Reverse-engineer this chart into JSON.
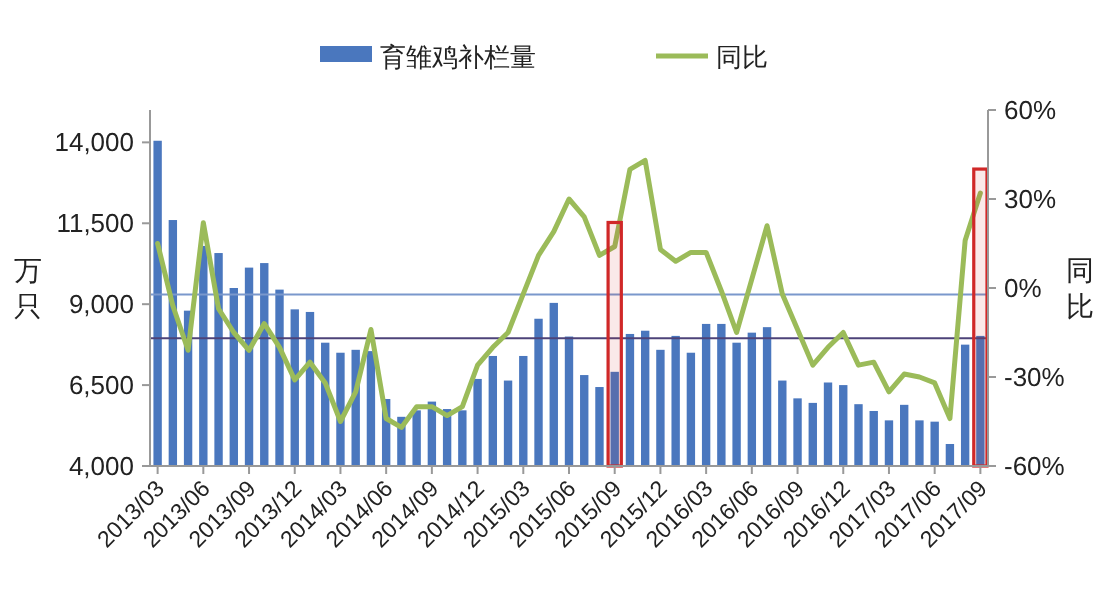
{
  "chart_data": {
    "type": "bar",
    "ylabel": "万只",
    "y2label": "同比",
    "categories": [
      "2013/03",
      null,
      null,
      "2013/06",
      null,
      null,
      "2013/09",
      null,
      null,
      "2013/12",
      null,
      null,
      "2014/03",
      null,
      null,
      "2014/06",
      null,
      null,
      "2014/09",
      null,
      null,
      "2014/12",
      null,
      null,
      "2015/03",
      null,
      null,
      "2015/06",
      null,
      null,
      "2015/09",
      null,
      null,
      "2015/12",
      null,
      null,
      "2016/03",
      null,
      null,
      "2016/06",
      null,
      null,
      "2016/09",
      null,
      null,
      "2016/12",
      null,
      null,
      "2017/03",
      null,
      null,
      "2017/06",
      null,
      null,
      "2017/09"
    ],
    "series": [
      {
        "name": "育雏鸡补栏量",
        "color": "#4a77be",
        "values": [
          14050,
          11600,
          8800,
          10800,
          10580,
          9500,
          10130,
          10270,
          9450,
          8840,
          8760,
          7810,
          7500,
          7590,
          7550,
          6070,
          5520,
          5720,
          5990,
          5760,
          5720,
          6690,
          7400,
          6640,
          7400,
          8550,
          9040,
          8000,
          6810,
          6440,
          6910,
          8080,
          8180,
          7590,
          8020,
          7500,
          8390,
          8390,
          7810,
          8120,
          8290,
          6640,
          6090,
          5950,
          6580,
          6500,
          5910,
          5700,
          5410,
          5890,
          5410,
          5370,
          4680,
          7750,
          8020
        ]
      },
      {
        "name": "同比",
        "type": "line",
        "axis": "y2",
        "color": "#9bbb59",
        "values": [
          15,
          -6,
          -21,
          22,
          -7,
          -15,
          -21,
          -12,
          -20,
          -31,
          -25,
          -32,
          -45,
          -35,
          -14,
          -44,
          -47,
          -40,
          -40,
          -43,
          -40,
          -26,
          -20,
          -15,
          -2,
          11,
          19,
          30,
          24,
          11,
          14,
          40,
          43,
          13,
          9,
          12,
          12,
          -1,
          -15,
          3,
          21,
          -2,
          -14,
          -26,
          -20,
          -15,
          -26,
          -25,
          -35,
          -29,
          -30,
          -32,
          -44,
          16,
          32
        ]
      }
    ],
    "ylim": [
      4000,
      15000
    ],
    "yticks": [
      {
        "value": 4000,
        "label": "4,000"
      },
      {
        "value": 6500,
        "label": "6,500"
      },
      {
        "value": 9000,
        "label": "9,000"
      },
      {
        "value": 11500,
        "label": "11,500"
      },
      {
        "value": 14000,
        "label": "14,000"
      }
    ],
    "y2lim": [
      -60,
      60
    ],
    "y2ticks": [
      {
        "value": -60,
        "label": "-60%"
      },
      {
        "value": -30,
        "label": "-30%"
      },
      {
        "value": 0,
        "label": "0%"
      },
      {
        "value": 30,
        "label": "30%"
      },
      {
        "value": 60,
        "label": "60%"
      }
    ],
    "ref_lines": [
      {
        "axis": "y",
        "value": 9300,
        "color": "#7a98cc"
      },
      {
        "axis": "y",
        "value": 7950,
        "color": "#4d4379"
      }
    ],
    "bands": [
      {
        "axis": "x",
        "from": "2015/09",
        "to": "2015/09",
        "color": "#d02828"
      },
      {
        "axis": "x",
        "from": "2017/09",
        "to": "2017/09",
        "color": "#d02828"
      }
    ],
    "legend": "top",
    "grid": false
  }
}
